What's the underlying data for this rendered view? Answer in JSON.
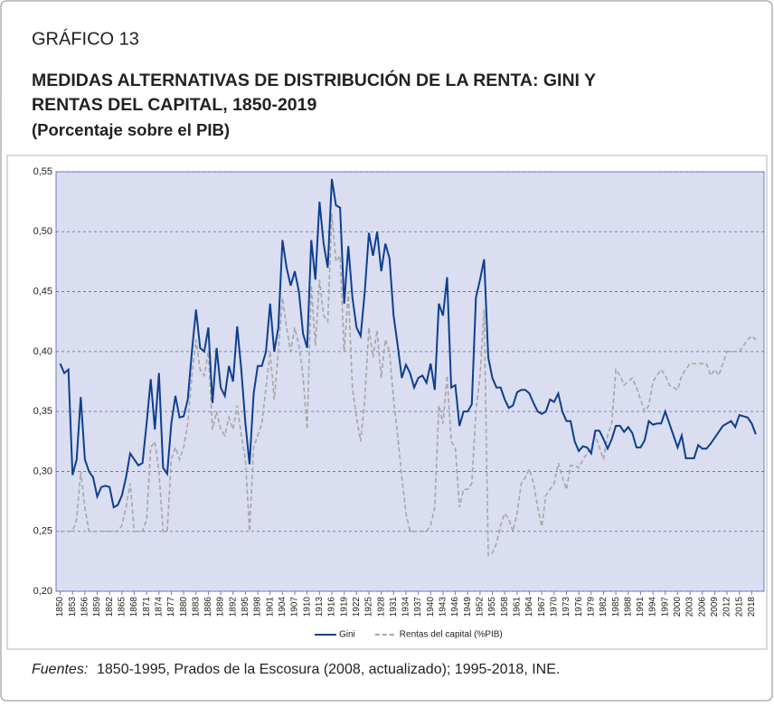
{
  "chart_data": {
    "type": "line",
    "label": "GRÁFICO 13",
    "title": [
      "MEDIDAS ALTERNATIVAS DE DISTRIBUCIÓN DE LA RENTA: GINI Y",
      "RENTAS DEL CAPITAL, 1850-2019"
    ],
    "subtitle": "(Porcentaje sobre el PIB)",
    "source_label": "Fuentes:",
    "source": "1850-1995, Prados de la Escosura (2008, actualizado); 1995-2018, INE.",
    "x": [
      1850,
      1851,
      1852,
      1853,
      1854,
      1855,
      1856,
      1857,
      1858,
      1859,
      1860,
      1861,
      1862,
      1863,
      1864,
      1865,
      1866,
      1867,
      1868,
      1869,
      1870,
      1871,
      1872,
      1873,
      1874,
      1875,
      1876,
      1877,
      1878,
      1879,
      1880,
      1881,
      1882,
      1883,
      1884,
      1885,
      1886,
      1887,
      1888,
      1889,
      1890,
      1891,
      1892,
      1893,
      1894,
      1895,
      1896,
      1897,
      1898,
      1899,
      1900,
      1901,
      1902,
      1903,
      1904,
      1905,
      1906,
      1907,
      1908,
      1909,
      1910,
      1911,
      1912,
      1913,
      1914,
      1915,
      1916,
      1917,
      1918,
      1919,
      1920,
      1921,
      1922,
      1923,
      1924,
      1925,
      1926,
      1927,
      1928,
      1929,
      1930,
      1931,
      1932,
      1933,
      1934,
      1935,
      1936,
      1937,
      1938,
      1939,
      1940,
      1941,
      1942,
      1943,
      1944,
      1945,
      1946,
      1947,
      1948,
      1949,
      1950,
      1951,
      1952,
      1953,
      1954,
      1955,
      1956,
      1957,
      1958,
      1959,
      1960,
      1961,
      1962,
      1963,
      1964,
      1965,
      1966,
      1967,
      1968,
      1969,
      1970,
      1971,
      1972,
      1973,
      1974,
      1975,
      1976,
      1977,
      1978,
      1979,
      1980,
      1981,
      1982,
      1983,
      1984,
      1985,
      1986,
      1987,
      1988,
      1989,
      1990,
      1991,
      1992,
      1993,
      1994,
      1995,
      1996,
      1997,
      1998,
      1999,
      2000,
      2001,
      2002,
      2003,
      2004,
      2005,
      2006,
      2007,
      2008,
      2009,
      2010,
      2011,
      2012,
      2013,
      2014,
      2015,
      2016,
      2017,
      2018,
      2019
    ],
    "series": [
      {
        "name": "Gini",
        "color": "#0d3f8f",
        "dashed": false,
        "values": [
          0.39,
          0.382,
          0.385,
          0.297,
          0.31,
          0.362,
          0.31,
          0.3,
          0.295,
          0.279,
          0.287,
          0.288,
          0.287,
          0.27,
          0.272,
          0.28,
          0.295,
          0.315,
          0.31,
          0.305,
          0.307,
          0.34,
          0.377,
          0.335,
          0.382,
          0.303,
          0.298,
          0.34,
          0.363,
          0.345,
          0.346,
          0.36,
          0.4,
          0.435,
          0.403,
          0.4,
          0.42,
          0.357,
          0.403,
          0.37,
          0.363,
          0.388,
          0.375,
          0.421,
          0.385,
          0.34,
          0.306,
          0.365,
          0.388,
          0.388,
          0.4,
          0.44,
          0.4,
          0.42,
          0.493,
          0.47,
          0.455,
          0.467,
          0.45,
          0.415,
          0.403,
          0.493,
          0.46,
          0.525,
          0.49,
          0.47,
          0.544,
          0.522,
          0.52,
          0.44,
          0.488,
          0.445,
          0.42,
          0.413,
          0.45,
          0.499,
          0.48,
          0.5,
          0.467,
          0.49,
          0.478,
          0.43,
          0.405,
          0.378,
          0.389,
          0.382,
          0.37,
          0.378,
          0.38,
          0.374,
          0.39,
          0.368,
          0.44,
          0.43,
          0.462,
          0.37,
          0.372,
          0.338,
          0.35,
          0.35,
          0.356,
          0.445,
          0.46,
          0.477,
          0.395,
          0.378,
          0.37,
          0.37,
          0.36,
          0.353,
          0.355,
          0.366,
          0.368,
          0.368,
          0.365,
          0.357,
          0.35,
          0.348,
          0.35,
          0.36,
          0.358,
          0.365,
          0.35,
          0.342,
          0.342,
          0.325,
          0.317,
          0.321,
          0.32,
          0.315,
          0.334,
          0.334,
          0.327,
          0.319,
          0.327,
          0.338,
          0.338,
          0.333,
          0.337,
          0.332,
          0.32,
          0.32,
          0.326,
          0.342,
          0.339,
          0.34,
          0.34,
          0.35,
          0.34,
          0.33,
          0.32,
          0.33,
          0.311,
          0.311,
          0.311,
          0.322,
          0.319,
          0.319,
          0.323,
          0.328,
          0.333,
          0.338,
          0.34,
          0.342,
          0.337,
          0.347,
          0.346,
          0.345,
          0.34,
          0.331
        ]
      },
      {
        "name": "Rentas del capital (%PIB)",
        "color": "#a6a6a6",
        "dashed": true,
        "values": [
          0.25,
          0.25,
          0.25,
          0.25,
          0.26,
          0.3,
          0.27,
          0.25,
          0.25,
          0.25,
          0.25,
          0.25,
          0.25,
          0.25,
          0.25,
          0.255,
          0.27,
          0.29,
          0.25,
          0.25,
          0.25,
          0.26,
          0.32,
          0.325,
          0.3,
          0.25,
          0.25,
          0.31,
          0.32,
          0.31,
          0.32,
          0.34,
          0.38,
          0.41,
          0.385,
          0.38,
          0.4,
          0.335,
          0.35,
          0.335,
          0.33,
          0.345,
          0.335,
          0.355,
          0.33,
          0.31,
          0.25,
          0.32,
          0.33,
          0.34,
          0.37,
          0.4,
          0.36,
          0.4,
          0.445,
          0.42,
          0.4,
          0.42,
          0.405,
          0.38,
          0.335,
          0.455,
          0.405,
          0.46,
          0.43,
          0.425,
          0.515,
          0.475,
          0.48,
          0.4,
          0.45,
          0.37,
          0.345,
          0.325,
          0.36,
          0.42,
          0.395,
          0.418,
          0.378,
          0.41,
          0.4,
          0.36,
          0.33,
          0.295,
          0.265,
          0.25,
          0.25,
          0.25,
          0.25,
          0.25,
          0.255,
          0.27,
          0.355,
          0.34,
          0.38,
          0.325,
          0.32,
          0.27,
          0.285,
          0.285,
          0.29,
          0.35,
          0.38,
          0.435,
          0.23,
          0.232,
          0.24,
          0.255,
          0.265,
          0.26,
          0.25,
          0.265,
          0.29,
          0.295,
          0.302,
          0.29,
          0.27,
          0.254,
          0.28,
          0.285,
          0.29,
          0.307,
          0.295,
          0.285,
          0.305,
          0.305,
          0.303,
          0.31,
          0.315,
          0.32,
          0.33,
          0.32,
          0.31,
          0.33,
          0.34,
          0.385,
          0.38,
          0.372,
          0.375,
          0.378,
          0.37,
          0.36,
          0.35,
          0.355,
          0.375,
          0.38,
          0.385,
          0.38,
          0.372,
          0.37,
          0.368,
          0.38,
          0.385,
          0.39,
          0.39,
          0.39,
          0.39,
          0.39,
          0.38,
          0.385,
          0.38,
          0.39,
          0.4,
          0.4,
          0.4,
          0.4,
          0.405,
          0.41,
          0.413,
          0.41
        ]
      }
    ],
    "xlim": [
      1849,
      2021
    ],
    "xticks": [
      1850,
      1853,
      1856,
      1859,
      1862,
      1865,
      1868,
      1871,
      1874,
      1877,
      1880,
      1883,
      1886,
      1889,
      1892,
      1895,
      1898,
      1901,
      1904,
      1907,
      1910,
      1913,
      1916,
      1919,
      1922,
      1925,
      1928,
      1931,
      1934,
      1937,
      1940,
      1943,
      1946,
      1949,
      1952,
      1955,
      1958,
      1961,
      1964,
      1967,
      1970,
      1973,
      1976,
      1979,
      1982,
      1985,
      1988,
      1991,
      1994,
      1997,
      2000,
      2003,
      2006,
      2009,
      2012,
      2015,
      2018
    ],
    "ylim": [
      0.2,
      0.55
    ],
    "yticks": [
      {
        "value": 0.2,
        "label": "0,20"
      },
      {
        "value": 0.25,
        "label": "0,25"
      },
      {
        "value": 0.3,
        "label": "0,30"
      },
      {
        "value": 0.35,
        "label": "0,35"
      },
      {
        "value": 0.4,
        "label": "0,40"
      },
      {
        "value": 0.45,
        "label": "0,45"
      },
      {
        "value": 0.5,
        "label": "0,50"
      },
      {
        "value": 0.55,
        "label": "0,55"
      }
    ],
    "grid": true,
    "legend": "bottom"
  }
}
